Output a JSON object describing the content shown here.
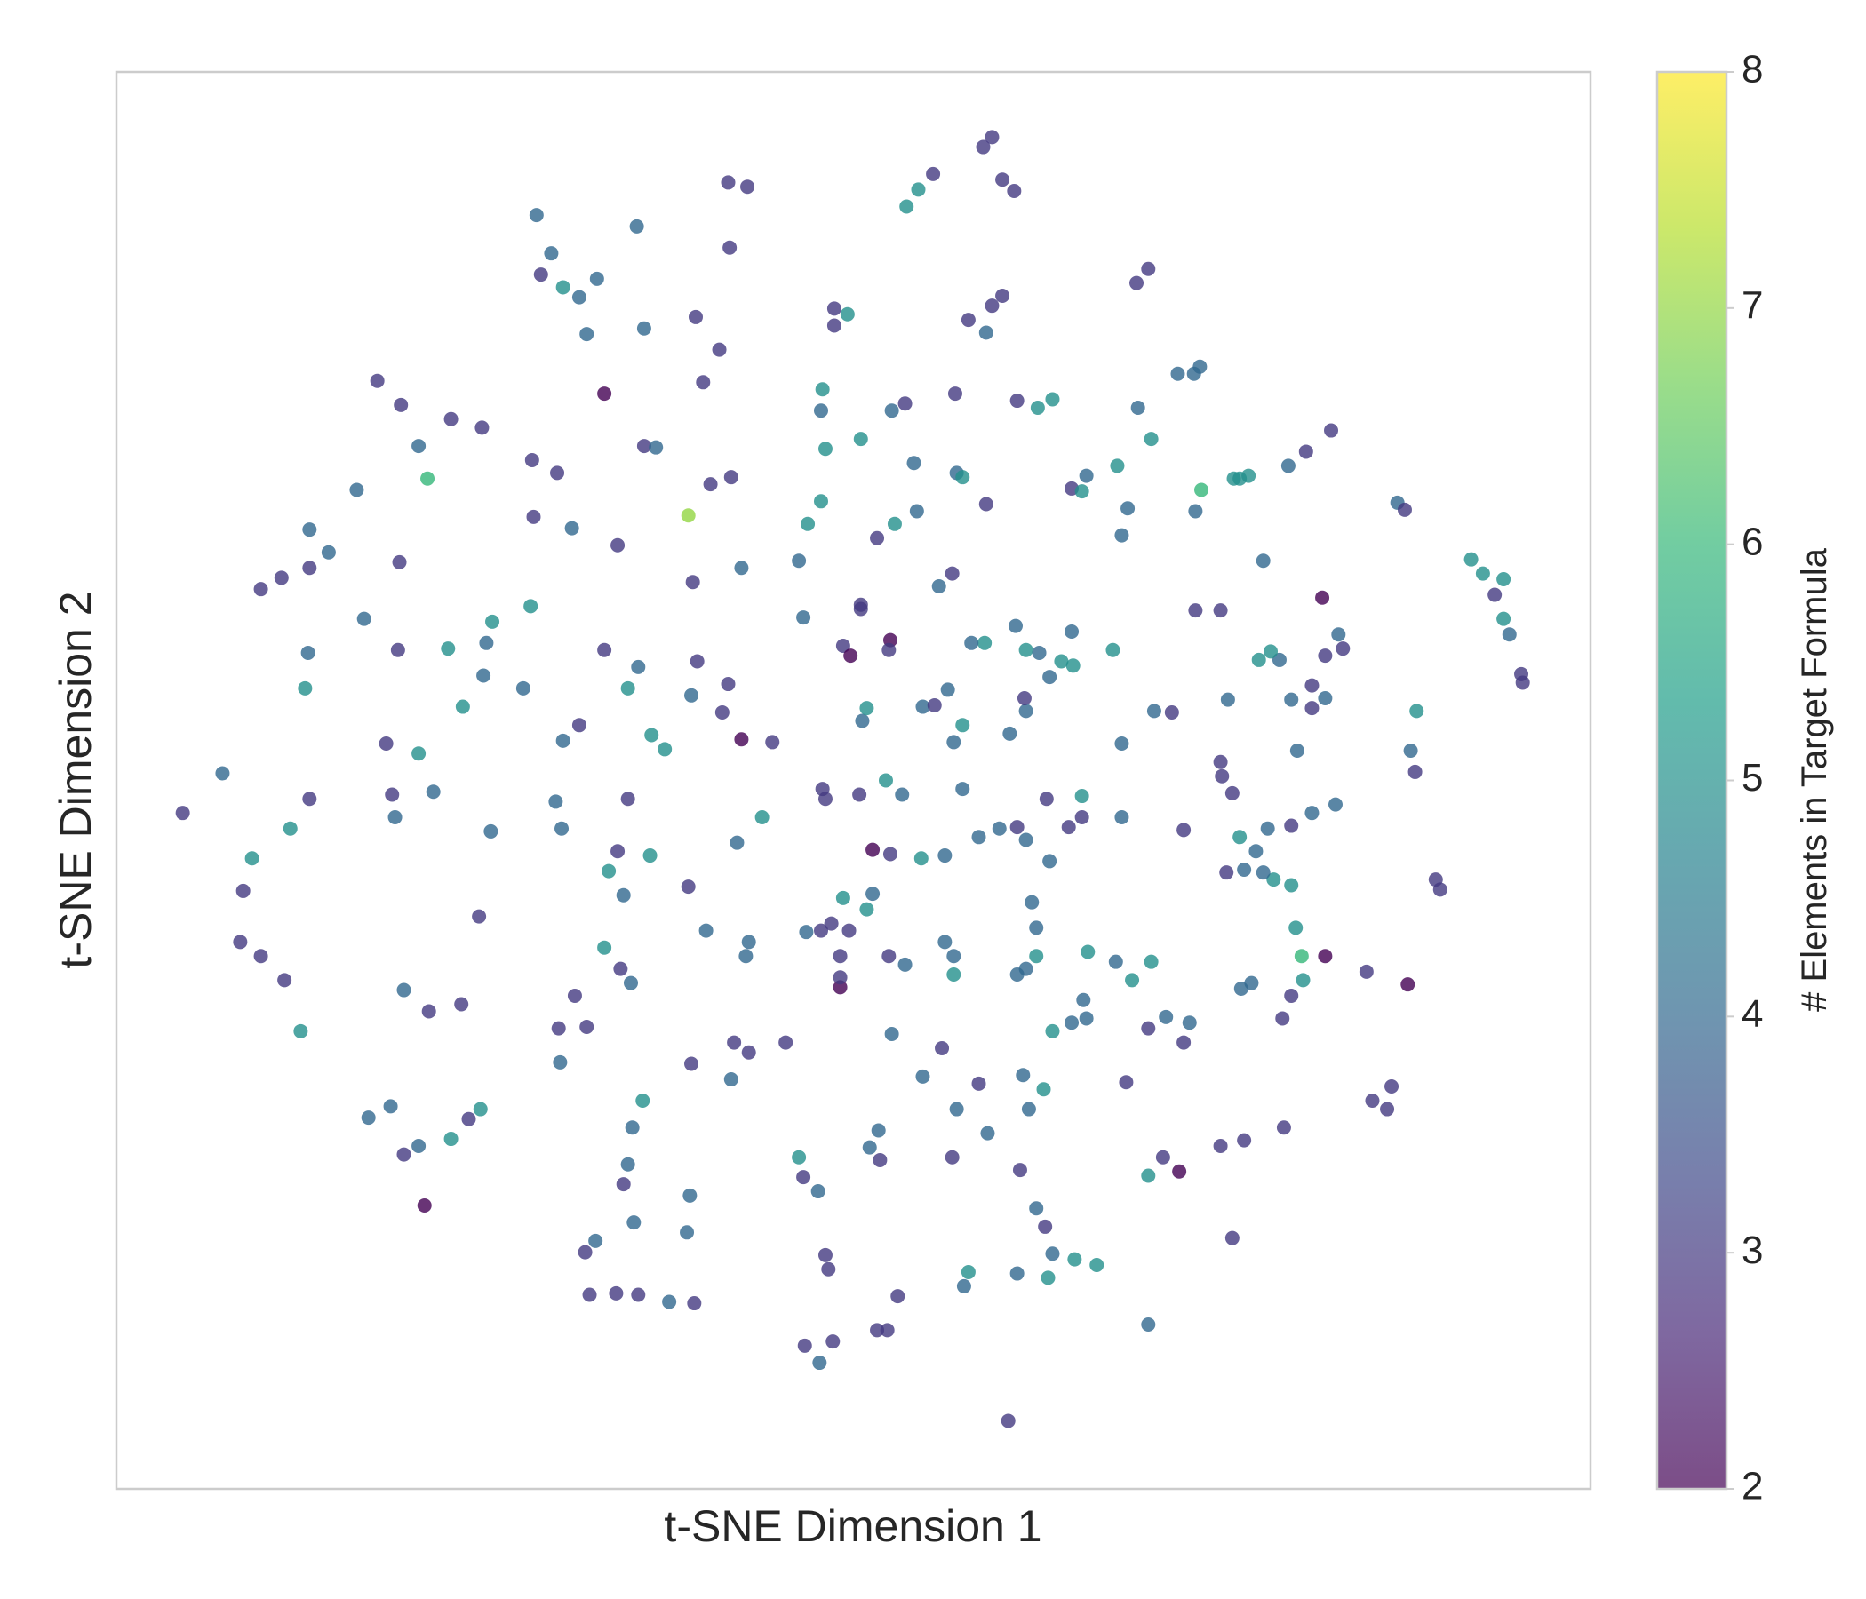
{
  "chart_data": {
    "type": "scatter",
    "xlabel": "t-SNE Dimension 1",
    "ylabel": "t-SNE Dimension 2",
    "xlim": [
      0,
      100
    ],
    "ylim": [
      0,
      100
    ],
    "x": [
      4.5,
      7.2,
      9.8,
      11.2,
      13.1,
      14.4,
      13.1,
      9.2,
      8.6,
      8.4,
      9.8,
      11.4,
      12.5,
      12.8,
      13.0,
      13.1,
      11.8,
      16.3,
      17.7,
      19.3,
      21.1,
      20.5,
      22.7,
      24.8,
      19.2,
      16.8,
      19.1,
      22.5,
      18.3,
      20.5,
      21.5,
      18.7,
      18.9,
      23.5,
      24.9,
      27.6,
      25.4,
      24.6,
      19.5,
      21.2,
      23.4,
      17.1,
      18.6,
      19.5,
      20.5,
      22.7,
      23.9,
      24.7,
      20.9,
      28.5,
      28.8,
      30.3,
      29.5,
      31.4,
      32.6,
      31.9,
      35.3,
      33.1,
      35.8,
      39.3,
      40.9,
      41.5,
      42.8,
      41.6,
      39.8,
      28.2,
      29.9,
      28.3,
      30.9,
      34.0,
      28.1,
      25.5,
      25.1,
      35.8,
      36.6,
      40.3,
      41.7,
      38.8,
      39.1,
      42.4,
      33.1,
      35.4,
      34.7,
      36.3,
      37.2,
      31.4,
      30.3,
      29.8,
      30.2,
      34.7,
      34.0,
      36.2,
      33.4,
      34.4,
      39.4,
      39.0,
      41.5,
      41.1,
      42.4,
      44.5,
      38.8,
      42.1,
      43.8,
      40.0,
      42.9,
      42.7,
      33.1,
      34.2,
      34.9,
      31.1,
      30.0,
      31.9,
      30.1,
      39.0,
      41.9,
      42.9,
      41.7,
      45.4,
      35.7,
      35.0,
      34.7,
      34.4,
      35.1,
      38.9,
      38.7,
      31.8,
      32.5,
      32.1,
      33.9,
      35.4,
      37.5,
      39.2,
      46.3,
      46.6,
      47.6,
      48.1,
      48.3,
      46.7,
      47.7,
      48.6,
      51.6,
      52.3,
      53.0,
      51.7,
      51.1,
      51.8,
      52.6,
      56.0,
      54.7,
      56.7,
      57.0,
      58.5,
      59.1,
      61.3,
      61.5,
      62.9,
      61.9,
      62.4,
      63.0,
      63.5,
      65.0,
      66.5,
      63.2,
      61.1,
      57.8,
      57.5,
      60.5,
      70.0,
      72.1,
      71.0,
      70.0,
      75.7,
      74.9,
      76.5,
      79.2,
      86.2,
      85.2,
      86.5,
      68.5,
      70.0,
      71.2,
      72.8,
      72.4,
      65.8,
      65.6,
      63.5,
      64.8,
      67.8,
      68.9,
      70.2,
      65.9,
      62.4,
      61.7,
      61.1,
      62.4,
      62.1,
      56.8,
      56.8,
      56.2,
      52.4,
      53.5,
      49.1,
      49.1,
      49.1,
      47.8,
      49.7,
      48.5,
      46.8,
      49.3,
      50.9,
      51.3,
      51.3,
      52.5,
      54.6,
      56.2,
      58.5,
      59.9,
      61.1,
      63.1,
      65.5,
      64.6,
      65.5,
      68.2,
      63.3,
      61.7,
      57.4,
      52.2,
      53.3,
      50.4,
      47.9,
      48.1,
      50.6,
      50.9,
      54.7,
      55.5,
      56.4,
      57.4,
      56.8,
      60.6,
      61.7,
      61.6,
      63.3,
      64.9,
      64.1,
      61.7,
      62.6,
      61.0,
      64.8,
      67.6,
      58.9,
      58.0,
      52.5,
      52.4,
      49.3,
      49.8,
      50.5,
      46.6,
      46.3,
      47.8,
      47.9,
      47.8,
      48.1,
      46.9,
      48.7,
      48.7,
      49.6,
      50.5,
      52.6,
      53.5,
      51.6,
      52.8,
      54.3,
      54.1,
      57.0,
      57.4,
      59.0,
      56.9,
      55.8,
      56.7,
      50.5,
      53.6,
      54.4,
      55.4,
      58.8,
      59.4,
      60.1,
      60.9,
      59.4,
      60.1,
      57.8,
      59.0,
      61.1,
      62.5,
      63.5,
      64.8,
      65.5,
      65.8,
      67.9,
      68.6,
      68.2,
      69.3,
      70.2,
      69.2,
      70.0,
      73.1,
      73.5,
      72.0,
      73.6,
      73.2,
      75.8,
      76.8,
      79.5,
      80.7,
      82.4,
      77.8,
      73.2,
      74.9,
      81.8,
      86.9,
      87.4,
      91.9,
      92.7,
      94.1,
      93.5,
      94.1,
      94.5,
      95.3,
      95.4,
      88.2,
      87.8,
      88.1,
      89.5,
      89.8,
      87.6,
      84.8,
      82.0,
      80.4,
      80.0,
      80.5,
      79.7,
      79.1,
      77.0,
      76.3,
      79.7,
      78.5,
      77.8,
      76.5,
      75.3,
      77.3,
      76.2,
      78.1,
      79.7,
      81.1,
      82.7,
      75.7,
      75.0,
      74.9,
      75.4,
      79.7,
      81.1,
      81.1,
      82.0,
      80.1,
      78.9,
      77.5,
      78.3,
      82.0,
      82.9,
      83.2,
      71.6,
      70.4,
      68.2,
      72.4,
      76.2
    ],
    "y": [
      47.7,
      50.5,
      63.5,
      64.3,
      65.0,
      66.1,
      67.7,
      44.5,
      42.2,
      38.6,
      37.6,
      35.9,
      32.3,
      56.5,
      59.0,
      48.7,
      46.6,
      70.5,
      78.2,
      76.5,
      71.3,
      73.6,
      75.5,
      74.9,
      65.4,
      61.4,
      59.2,
      59.3,
      52.6,
      51.9,
      49.2,
      49.0,
      47.4,
      55.2,
      57.4,
      56.5,
      46.4,
      40.4,
      35.2,
      33.7,
      34.2,
      26.2,
      27.0,
      23.6,
      24.2,
      24.7,
      26.1,
      26.8,
      20.0,
      89.9,
      85.7,
      84.8,
      87.2,
      84.1,
      85.4,
      81.5,
      89.1,
      77.3,
      81.9,
      82.7,
      80.4,
      92.2,
      91.9,
      87.6,
      78.1,
      72.6,
      71.7,
      68.6,
      67.8,
      66.6,
      62.3,
      61.2,
      59.7,
      73.6,
      73.5,
      70.9,
      71.4,
      68.7,
      64.0,
      65.0,
      59.2,
      58.0,
      56.5,
      53.2,
      52.2,
      53.9,
      52.8,
      48.5,
      46.6,
      48.7,
      45.0,
      44.7,
      43.6,
      41.9,
      58.4,
      56.0,
      56.8,
      54.8,
      52.9,
      52.7,
      42.5,
      45.6,
      47.4,
      39.4,
      38.6,
      37.6,
      38.2,
      36.7,
      35.7,
      34.8,
      32.5,
      32.6,
      30.1,
      30.0,
      31.5,
      30.8,
      28.9,
      31.5,
      27.4,
      25.5,
      22.9,
      21.5,
      18.8,
      20.7,
      18.1,
      16.7,
      17.5,
      13.7,
      13.8,
      13.7,
      13.2,
      13.1,
      23.4,
      22.0,
      21.0,
      16.5,
      15.5,
      10.1,
      8.9,
      10.4,
      11.2,
      11.2,
      13.6,
      25.3,
      24.1,
      23.2,
      32.1,
      31.1,
      29.1,
      23.4,
      26.8,
      28.6,
      25.1,
      22.5,
      29.2,
      28.2,
      26.8,
      19.8,
      18.5,
      16.6,
      16.2,
      15.8,
      14.9,
      15.2,
      15.3,
      14.3,
      4.8,
      11.6,
      22.4,
      23.4,
      22.1,
      17.7,
      24.2,
      24.6,
      25.5,
      26.8,
      27.4,
      28.4,
      28.7,
      32.5,
      33.3,
      32.9,
      31.5,
      33.2,
      34.5,
      32.3,
      32.9,
      37.2,
      35.9,
      37.2,
      37.9,
      37.6,
      36.7,
      36.3,
      39.6,
      41.4,
      37.6,
      36.3,
      38.6,
      37.6,
      37.0,
      37.6,
      35.4,
      36.1,
      39.4,
      39.4,
      39.9,
      39.3,
      41.7,
      40.9,
      42.0,
      45.1,
      44.8,
      44.5,
      44.7,
      46.0,
      46.6,
      46.7,
      48.7,
      48.9,
      46.7,
      47.4,
      47.4,
      44.3,
      45.8,
      49.4,
      50.0,
      49.0,
      49.0,
      49.4,
      48.7,
      54.2,
      55.1,
      55.2,
      55.3,
      56.4,
      53.9,
      52.7,
      53.3,
      54.9,
      55.8,
      57.3,
      58.1,
      58.4,
      59.2,
      59.0,
      60.9,
      60.5,
      59.2,
      59.7,
      59.7,
      59.9,
      59.2,
      59.5,
      58.8,
      62.1,
      61.5,
      65.5,
      69.7,
      77.6,
      76.1,
      73.4,
      68.1,
      83.3,
      82.1,
      82.9,
      74.1,
      76.1,
      76.6,
      67.1,
      68.1,
      69.0,
      72.4,
      71.7,
      71.4,
      69.5,
      77.3,
      63.7,
      64.6,
      62.4,
      90.5,
      91.7,
      92.8,
      94.7,
      95.4,
      92.4,
      91.6,
      83.5,
      84.2,
      82.5,
      81.6,
      76.8,
      76.3,
      76.9,
      70.6,
      70.4,
      71.5,
      72.2,
      69.2,
      67.3,
      76.3,
      74.1,
      85.1,
      86.1,
      78.7,
      79.2,
      78.7,
      70.5,
      69.0,
      71.3,
      71.5,
      72.2,
      73.2,
      74.7,
      65.5,
      62.0,
      62.0,
      62.9,
      69.6,
      69.1,
      65.6,
      64.6,
      64.2,
      63.1,
      61.4,
      60.3,
      57.5,
      56.9,
      54.9,
      52.1,
      50.6,
      43.0,
      42.3,
      35.6,
      36.5,
      37.6,
      37.6,
      39.6,
      35.9,
      34.8,
      33.2,
      35.7,
      35.3,
      42.6,
      43.0,
      43.5,
      43.7,
      43.5,
      45.0,
      46.0,
      46.6,
      46.8,
      47.7,
      48.3,
      49.1,
      50.3,
      51.3,
      55.7,
      55.7,
      55.1,
      56.7,
      55.8,
      52.1,
      58.5,
      58.5,
      59.1,
      58.8,
      60.3,
      59.3,
      54.8,
      54.9,
      52.6,
      46.5,
      71.3
    ],
    "c": [
      3,
      4,
      3,
      3,
      3,
      4,
      4,
      5,
      3,
      3,
      3,
      3,
      5,
      5,
      4,
      3,
      5,
      4,
      3,
      3,
      6,
      4,
      3,
      3,
      3,
      4,
      3,
      5,
      3,
      5,
      4,
      3,
      4,
      5,
      4,
      4,
      4,
      3,
      4,
      3,
      3,
      4,
      4,
      3,
      4,
      5,
      3,
      5,
      2,
      4,
      3,
      5,
      4,
      4,
      4,
      4,
      4,
      2,
      4,
      3,
      3,
      3,
      3,
      3,
      3,
      3,
      3,
      3,
      4,
      3,
      5,
      5,
      4,
      3,
      4,
      3,
      3,
      7,
      3,
      4,
      3,
      4,
      5,
      5,
      5,
      3,
      4,
      4,
      4,
      3,
      3,
      5,
      5,
      4,
      3,
      4,
      3,
      3,
      2,
      3,
      3,
      4,
      5,
      4,
      4,
      4,
      5,
      3,
      4,
      3,
      3,
      3,
      4,
      3,
      3,
      3,
      4,
      3,
      5,
      4,
      4,
      3,
      4,
      4,
      4,
      3,
      4,
      3,
      3,
      3,
      4,
      3,
      5,
      3,
      4,
      3,
      3,
      3,
      4,
      3,
      3,
      3,
      3,
      4,
      4,
      3,
      4,
      3,
      4,
      3,
      4,
      3,
      4,
      3,
      4,
      5,
      4,
      4,
      3,
      4,
      5,
      5,
      5,
      4,
      5,
      4,
      3,
      4,
      2,
      3,
      5,
      3,
      3,
      3,
      3,
      3,
      3,
      3,
      3,
      3,
      4,
      4,
      3,
      4,
      4,
      5,
      4,
      4,
      5,
      5,
      5,
      5,
      4,
      4,
      4,
      4,
      4,
      5,
      4,
      3,
      4,
      3,
      2,
      3,
      3,
      3,
      3,
      4,
      5,
      5,
      4,
      2,
      3,
      5,
      4,
      4,
      4,
      3,
      3,
      5,
      3,
      3,
      4,
      4,
      4,
      4,
      5,
      4,
      3,
      3,
      3,
      4,
      5,
      4,
      3,
      4,
      5,
      4,
      4,
      4,
      3,
      4,
      5,
      5,
      5,
      4,
      4,
      4,
      5,
      5,
      4,
      2,
      3,
      3,
      2,
      3,
      4,
      4,
      5,
      5,
      4,
      5,
      5,
      3,
      3,
      5,
      5,
      4,
      3,
      3,
      5,
      4,
      4,
      4,
      5,
      3,
      3,
      4,
      3,
      3,
      5,
      5,
      3,
      3,
      3,
      3,
      3,
      3,
      3,
      3,
      4,
      3,
      5,
      5,
      3,
      5,
      4,
      5,
      4,
      4,
      4,
      5,
      3,
      3,
      4,
      4,
      4,
      6,
      4,
      5,
      5,
      4,
      3,
      3,
      4,
      3,
      3,
      2,
      4,
      3,
      5,
      5,
      5,
      3,
      5,
      4,
      3,
      3,
      5,
      4,
      3,
      3,
      3,
      2,
      3,
      2,
      6,
      5,
      5,
      3,
      3,
      4,
      4,
      5,
      5,
      4,
      4,
      3,
      4,
      5,
      4,
      3,
      4,
      4,
      3,
      3,
      3,
      4,
      4,
      3,
      3,
      4,
      4,
      4,
      5,
      5,
      3,
      4,
      3,
      3,
      4,
      4,
      3,
      5
    ],
    "colorbar": {
      "label": "# Elements in Target Formula",
      "colormap": "viridis",
      "lim": [
        2,
        8
      ],
      "ticks": [
        2,
        3,
        4,
        5,
        6,
        7,
        8
      ]
    }
  }
}
